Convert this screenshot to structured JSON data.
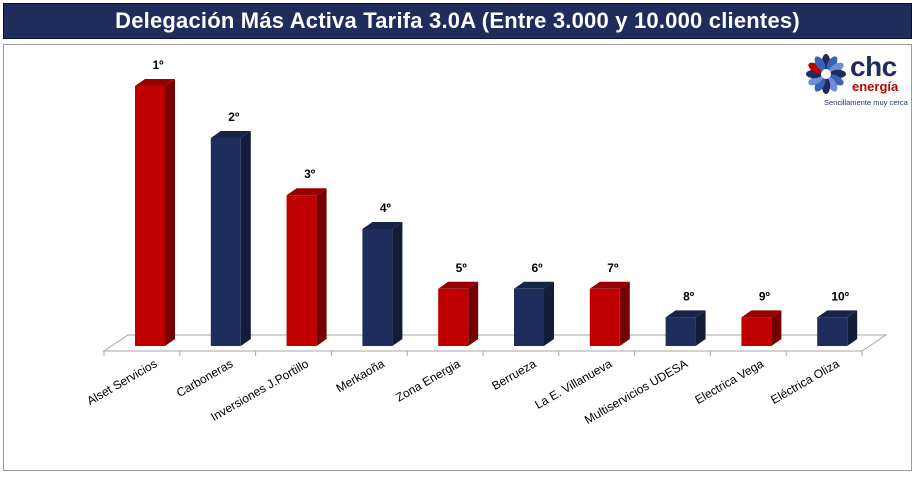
{
  "title": "Delegación Más Activa Tarifa 3.0A (Entre 3.000 y 10.000 clientes)",
  "logo": {
    "brand": "chc",
    "brand_sub": "energía",
    "tagline": "Sencillamente muy cerca",
    "icon": "flower-logo-icon"
  },
  "colors": {
    "red": "#c00000",
    "navy": "#1f2d5c",
    "title_bg": "#1f2d5c"
  },
  "chart_data": {
    "type": "bar",
    "title": "Delegación Más Activa Tarifa 3.0A (Entre 3.000 y 10.000 clientes)",
    "categories": [
      "Alset Servicios",
      "Carboneras",
      "Inversiones J.Portillo",
      "Merkaoña",
      "Zona Energia",
      "Berrueza",
      "La E. Villanueva",
      "Multiservicios UDESA",
      "Electrica Vega",
      "Eléctrica Oliza"
    ],
    "values": [
      10,
      8,
      5.8,
      4.5,
      2.2,
      2.2,
      2.2,
      1.1,
      1.1,
      1.1
    ],
    "value_labels": [
      "1º",
      "2º",
      "3º",
      "4º",
      "5º",
      "6º",
      "7º",
      "8º",
      "9º",
      "10º"
    ],
    "bar_colors": [
      "#c00000",
      "#1f2d5c",
      "#c00000",
      "#1f2d5c",
      "#c00000",
      "#1f2d5c",
      "#c00000",
      "#1f2d5c",
      "#c00000",
      "#1f2d5c"
    ],
    "ylim": [
      0,
      10
    ],
    "grid": false,
    "legend": "none",
    "xlabel": "",
    "ylabel": ""
  }
}
